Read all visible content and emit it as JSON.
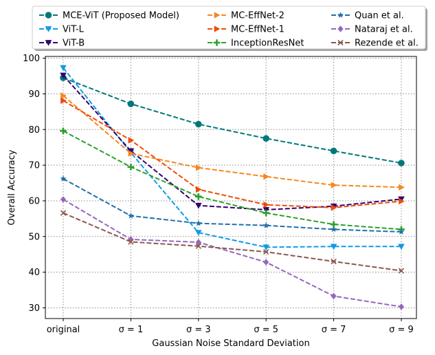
{
  "chart_data": {
    "type": "line",
    "title": "",
    "xlabel": "Gaussian Noise Standard Deviation",
    "ylabel": "Overall Accuracy",
    "categories": [
      "original",
      "σ = 1",
      "σ = 3",
      "σ = 5",
      "σ = 7",
      "σ = 9"
    ],
    "ylim": [
      27,
      100.5
    ],
    "yticks": [
      30,
      40,
      50,
      60,
      70,
      80,
      90,
      100
    ],
    "grid": true,
    "legend_position": "top, outside plot, 3 columns",
    "series": [
      {
        "name": "MCE-ViT (Proposed Model)",
        "color": "#00787a",
        "marker": "circle",
        "values": [
          94.5,
          87.2,
          81.5,
          77.5,
          74.0,
          70.6
        ]
      },
      {
        "name": "ViT-L",
        "color": "#0f9be4",
        "marker": "triangle-down",
        "values": [
          97.3,
          73.5,
          51.1,
          47.0,
          47.2,
          47.2
        ]
      },
      {
        "name": "ViT-B",
        "color": "#33006e",
        "marker": "triangle-down",
        "values": [
          95.2,
          74.0,
          58.7,
          57.5,
          58.5,
          60.5
        ]
      },
      {
        "name": "MC-EffNet-2",
        "color": "#f6871f",
        "marker": "triangle-right",
        "values": [
          89.5,
          73.3,
          69.3,
          66.8,
          64.4,
          63.8
        ]
      },
      {
        "name": "MC-EffNet-1",
        "color": "#ef4c06",
        "marker": "triangle-right",
        "values": [
          88.1,
          77.0,
          63.2,
          58.9,
          58.1,
          59.9
        ]
      },
      {
        "name": "InceptionResNet",
        "color": "#2ca02c",
        "marker": "plus",
        "values": [
          79.6,
          69.5,
          61.2,
          56.6,
          53.4,
          52.0
        ]
      },
      {
        "name": "Quan et al.",
        "color": "#1f6fac",
        "marker": "star",
        "values": [
          66.2,
          55.8,
          53.7,
          53.1,
          52.0,
          51.3
        ]
      },
      {
        "name": "Nataraj et al.",
        "color": "#9467bd",
        "marker": "diamond",
        "values": [
          60.4,
          49.2,
          48.4,
          42.8,
          33.3,
          30.3
        ]
      },
      {
        "name": "Rezende et al.",
        "color": "#8c564b",
        "marker": "x",
        "values": [
          56.6,
          48.5,
          47.3,
          45.7,
          43.0,
          40.4
        ]
      }
    ]
  }
}
